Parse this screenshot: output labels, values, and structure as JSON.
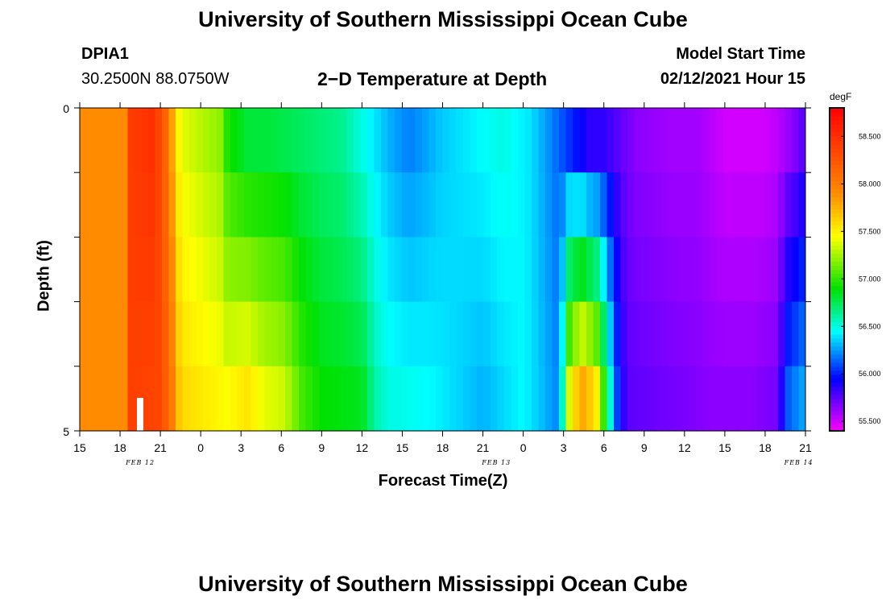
{
  "header": {
    "title": "University of Southern Mississippi Ocean Cube",
    "footer_title": "University of Southern Mississippi Ocean Cube",
    "station": "DPIA1",
    "coords": "30.2500N 88.0750W",
    "model_label": "Model Start Time",
    "model_time": "02/12/2021 Hour 15"
  },
  "chart_data": {
    "type": "heatmap",
    "title": "2−D Temperature at Depth",
    "xlabel": "Forecast Time(Z)",
    "ylabel": "Depth (ft)",
    "x_tick_labels": [
      "15",
      "18",
      "21",
      "0",
      "3",
      "6",
      "9",
      "12",
      "15",
      "18",
      "21",
      "0",
      "3",
      "6",
      "9",
      "12",
      "15",
      "18",
      "21"
    ],
    "x_hours": [
      0,
      3,
      6,
      9,
      12,
      15,
      18,
      21,
      24,
      27,
      30,
      33,
      36,
      39,
      42,
      45,
      48,
      51,
      54
    ],
    "x_range_hours": [
      0,
      54
    ],
    "date_labels": [
      {
        "label": "FEB 12",
        "hour": 4.5
      },
      {
        "label": "FEB 13",
        "hour": 31
      },
      {
        "label": "FEB 14",
        "hour": 53.5
      }
    ],
    "y_range": [
      0,
      5
    ],
    "y_tick_labels": [
      "0",
      "5"
    ],
    "depth_levels": 5,
    "colorbar": {
      "unit": "degF",
      "min": 55.4,
      "max": 58.8,
      "ticks": [
        "55.500",
        "56.000",
        "56.500",
        "57.000",
        "57.500",
        "58.000",
        "58.500"
      ],
      "tick_values": [
        55.5,
        56.0,
        56.5,
        57.0,
        57.5,
        58.0,
        58.5
      ]
    },
    "profiles": {
      "surface": [
        [
          0,
          57.9
        ],
        [
          3.4,
          57.9
        ],
        [
          3.5,
          58.4
        ],
        [
          5.5,
          58.5
        ],
        [
          6.3,
          58.2
        ],
        [
          6.9,
          57.8
        ],
        [
          7.5,
          57.4
        ],
        [
          10.5,
          57.2
        ],
        [
          11,
          56.95
        ],
        [
          12.5,
          56.8
        ],
        [
          14,
          56.8
        ],
        [
          19.5,
          56.65
        ],
        [
          21,
          56.5
        ],
        [
          23,
          56.3
        ],
        [
          24.5,
          56.2
        ],
        [
          25.5,
          56.25
        ],
        [
          27,
          56.35
        ],
        [
          31.5,
          56.5
        ],
        [
          33.5,
          56.4
        ],
        [
          36,
          56.1
        ],
        [
          37.2,
          55.95
        ],
        [
          38,
          55.85
        ],
        [
          39,
          55.85
        ],
        [
          40.5,
          55.72
        ],
        [
          41.5,
          55.65
        ],
        [
          44,
          55.6
        ],
        [
          46,
          55.6
        ],
        [
          48,
          55.5
        ],
        [
          51,
          55.5
        ],
        [
          52,
          55.55
        ],
        [
          53.5,
          55.7
        ],
        [
          54,
          55.8
        ]
      ],
      "bottom": [
        [
          0,
          57.9
        ],
        [
          3.4,
          57.9
        ],
        [
          3.5,
          58.4
        ],
        [
          6,
          58.35
        ],
        [
          6.9,
          58
        ],
        [
          7.5,
          57.6
        ],
        [
          11,
          57.45
        ],
        [
          12.5,
          57.55
        ],
        [
          13.7,
          57.4
        ],
        [
          15,
          57.35
        ],
        [
          15.6,
          57.25
        ],
        [
          16.5,
          57.05
        ],
        [
          18,
          56.9
        ],
        [
          21,
          56.85
        ],
        [
          22,
          56.6
        ],
        [
          23,
          56.5
        ],
        [
          26,
          56.45
        ],
        [
          30,
          56.3
        ],
        [
          33,
          56.45
        ],
        [
          35.7,
          56.2
        ],
        [
          36.5,
          57.5
        ],
        [
          37.5,
          57.8
        ],
        [
          38.5,
          57.5
        ],
        [
          39.5,
          56.5
        ],
        [
          40.2,
          55.9
        ],
        [
          41,
          55.75
        ],
        [
          44,
          55.7
        ],
        [
          47,
          55.65
        ],
        [
          50,
          55.65
        ],
        [
          52,
          55.7
        ],
        [
          52.5,
          56.1
        ],
        [
          54,
          56.3
        ]
      ]
    }
  }
}
